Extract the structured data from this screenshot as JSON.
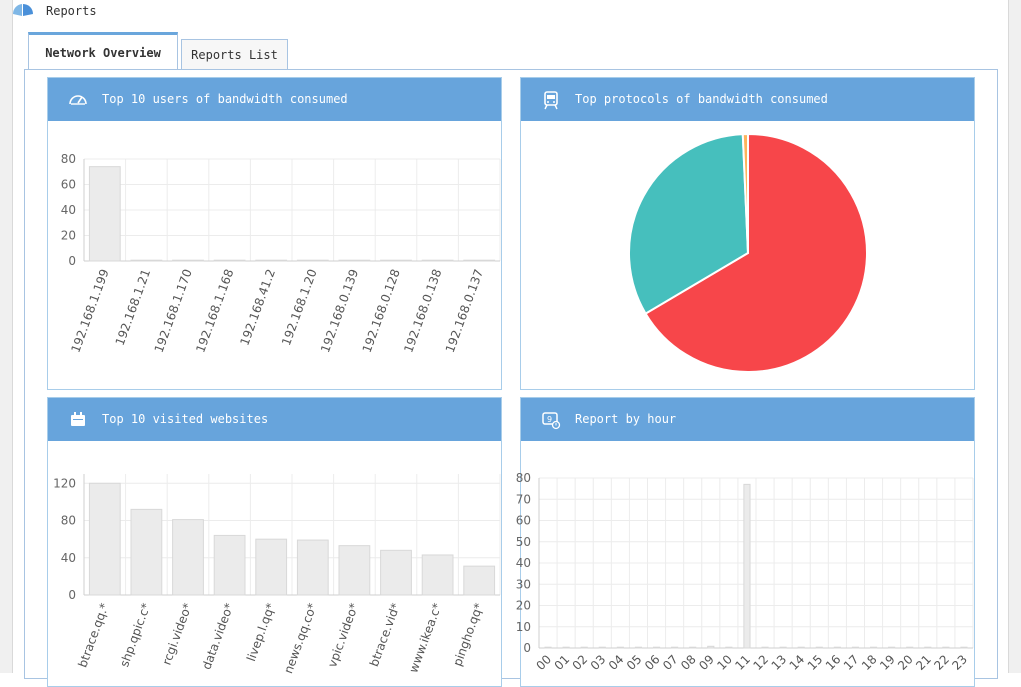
{
  "window": {
    "title": "Reports"
  },
  "tabs": [
    {
      "label": "Network Overview",
      "active": true
    },
    {
      "label": "Reports List",
      "active": false
    }
  ],
  "colors": {
    "header": "#67a4dc",
    "bar": "#ebebeb",
    "bar_border": "#d8d8d8",
    "pie_red": "#f7464a",
    "pie_teal": "#46bfbd",
    "pie_small": "#fdb45c"
  },
  "panels": {
    "users": {
      "title": "Top 10 users of bandwidth consumed",
      "icon": "speedometer-icon",
      "chart_data": {
        "type": "bar",
        "categories": [
          "192.168.1.199",
          "192.168.1.21",
          "192.168.1.170",
          "192.168.1.168",
          "192.168.41.2",
          "192.168.1.20",
          "192.168.0.139",
          "192.168.0.128",
          "192.168.0.138",
          "192.168.0.137"
        ],
        "values": [
          74,
          0.4,
          0.3,
          0.3,
          0.2,
          0.2,
          0.2,
          0.2,
          0.2,
          0.2
        ],
        "ylim": [
          0,
          80
        ],
        "yticks": [
          0,
          20,
          40,
          60,
          80
        ],
        "grid": true
      }
    },
    "protocols": {
      "title": "Top protocols of bandwidth consumed",
      "icon": "train-icon",
      "chart_data": {
        "type": "pie",
        "values": [
          66.5,
          32.8,
          0.7
        ],
        "colors": [
          "#f7464a",
          "#46bfbd",
          "#fdb45c"
        ]
      }
    },
    "websites": {
      "title": "Top 10 visited websites",
      "icon": "calendar-icon",
      "chart_data": {
        "type": "bar",
        "categories": [
          "btrace.qq.*",
          "shp.qpic.c*",
          "rcgi.video*",
          "data.video*",
          "livep.l.qq*",
          "news.qq.co*",
          "vpic.video*",
          "btrace.vid*",
          "www.ikea.c*",
          "pingho.qq*"
        ],
        "values": [
          120,
          92,
          81,
          64,
          60,
          59,
          53,
          48,
          43,
          31
        ],
        "ylim": [
          0,
          130
        ],
        "yticks": [
          0,
          40,
          80,
          120
        ],
        "grid": true
      }
    },
    "hours": {
      "title": "Report by hour",
      "icon": "clock-icon",
      "chart_data": {
        "type": "bar",
        "categories": [
          "00",
          "01",
          "02",
          "03",
          "04",
          "05",
          "06",
          "07",
          "08",
          "09",
          "10",
          "11",
          "12",
          "13",
          "14",
          "15",
          "16",
          "17",
          "18",
          "19",
          "20",
          "21",
          "22",
          "23"
        ],
        "values": [
          0.3,
          0.3,
          0.3,
          0.3,
          0.3,
          0.3,
          0.3,
          0.3,
          0.3,
          0.8,
          0.3,
          77,
          0.3,
          0.3,
          0.3,
          0.3,
          0.3,
          0.3,
          0.3,
          0.3,
          0.3,
          0.3,
          0.3,
          0.3
        ],
        "ylim": [
          0,
          80
        ],
        "yticks": [
          0,
          10,
          20,
          30,
          40,
          50,
          60,
          70,
          80
        ],
        "grid": true
      }
    }
  }
}
